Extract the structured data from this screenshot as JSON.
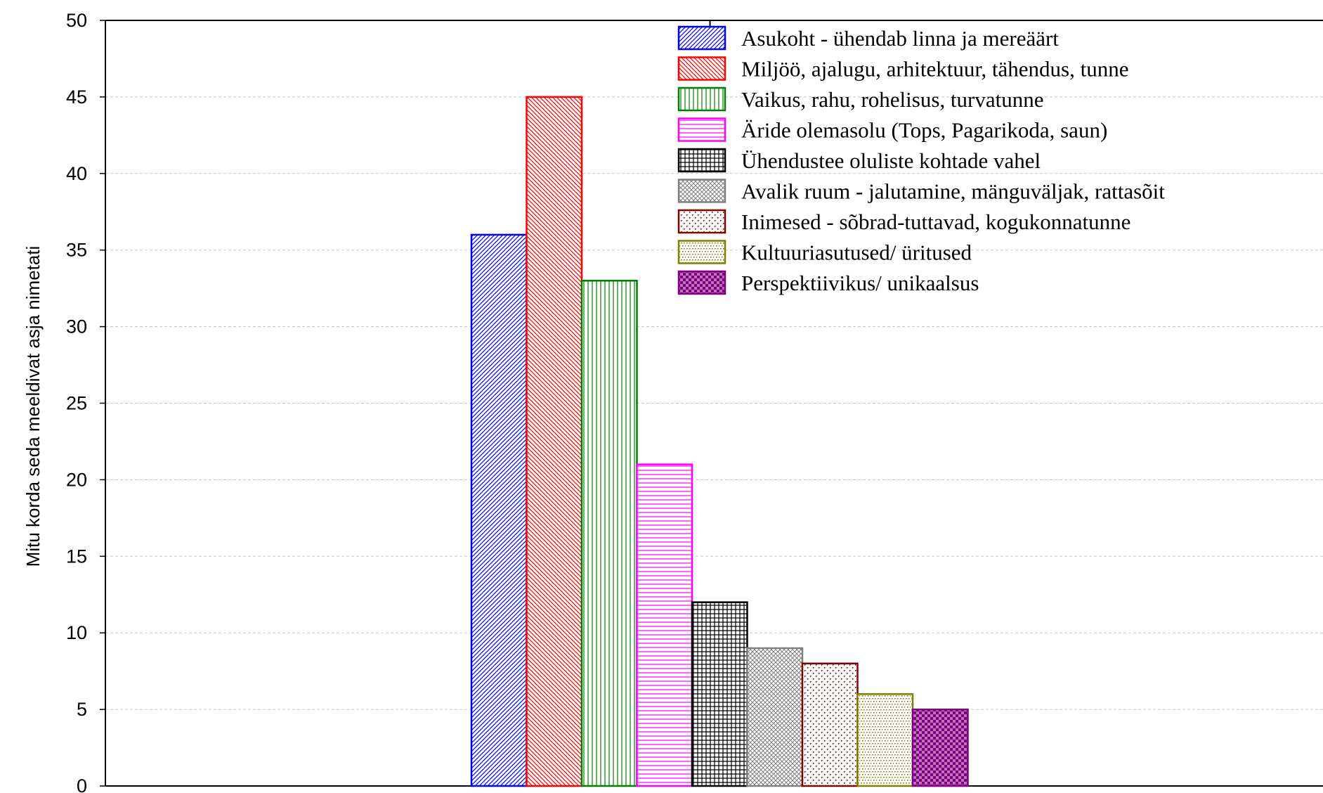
{
  "chart_data": {
    "type": "bar",
    "title": "",
    "xlabel": "",
    "ylabel": "Mitu korda seda meeldivat asja nimetati",
    "ylim": [
      0,
      50
    ],
    "yticks": [
      0,
      5,
      10,
      15,
      20,
      25,
      30,
      35,
      40,
      45,
      50
    ],
    "grid": true,
    "legend_position": "top-right",
    "series": [
      {
        "name": "Asukoht - ühendab linna ja mereäärt",
        "value": 36,
        "color": "#0000ff",
        "pattern": "diag-fine"
      },
      {
        "name": "Miljöö, ajalugu, arhitektuur, tähendus, tunne",
        "value": 45,
        "color": "#ff0000",
        "pattern": "diag-rev"
      },
      {
        "name": "Vaikus, rahu, rohelisus, turvatunne",
        "value": 33,
        "color": "#008000",
        "pattern": "vertical"
      },
      {
        "name": "Äride olemasolu (Tops, Pagarikoda, saun)",
        "value": 21,
        "color": "#ff00ff",
        "pattern": "horizontal"
      },
      {
        "name": "Ühendustee oluliste kohtade vahel",
        "value": 12,
        "color": "#000000",
        "pattern": "grid"
      },
      {
        "name": "Avalik ruum - jalutamine, mänguväljak, rattasõit",
        "value": 9,
        "color": "#808080",
        "pattern": "crosshatch"
      },
      {
        "name": "Inimesed - sõbrad-tuttavad, kogukonnatunne",
        "value": 8,
        "color": "#800000",
        "pattern": "dots"
      },
      {
        "name": "Kultuuriasutused/ üritused",
        "value": 6,
        "color": "#808000",
        "pattern": "dots-dense"
      },
      {
        "name": "Perspektiivikus/ unikaalsus",
        "value": 5,
        "color": "#800080",
        "pattern": "checker"
      }
    ]
  }
}
